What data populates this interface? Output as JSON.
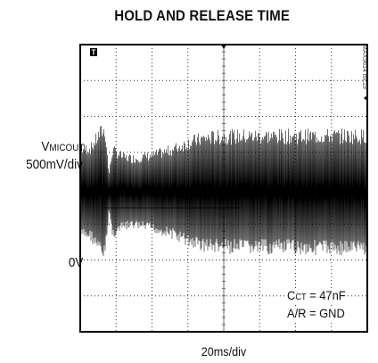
{
  "chart_data": {
    "type": "line",
    "title": "HOLD AND RELEASE TIME",
    "xlabel": "20ms/div",
    "ylabel_signal_main": "V",
    "ylabel_signal_sub": "MICOUT",
    "ylabel_scale": "500mV/div",
    "zero_label": "0V",
    "chart_id": "MAX9814 toc19",
    "trigger_marker": "T",
    "annotations": {
      "cct_main": "C",
      "cct_sub": "CT",
      "cct_value": " = 47nF",
      "ar": "A/R = GND"
    },
    "grid": true,
    "x_divisions": 8,
    "y_divisions": 8,
    "x_range_ms": [
      0,
      160
    ],
    "series": [
      {
        "points_ms_v": [
          [
            0,
            1.35
          ],
          [
            6,
            1.38
          ],
          [
            10,
            1.75
          ],
          [
            12,
            1.92
          ],
          [
            14,
            1.9
          ],
          [
            16,
            0.55
          ],
          [
            18,
            1.32
          ],
          [
            24,
            1.1
          ],
          [
            30,
            1.05
          ],
          [
            40,
            1.15
          ],
          [
            50,
            1.3
          ],
          [
            60,
            1.55
          ],
          [
            66,
            1.65
          ],
          [
            70,
            1.7
          ],
          [
            80,
            1.75
          ],
          [
            100,
            1.76
          ],
          [
            120,
            1.76
          ],
          [
            140,
            1.77
          ],
          [
            160,
            1.77
          ]
        ]
      }
    ]
  }
}
